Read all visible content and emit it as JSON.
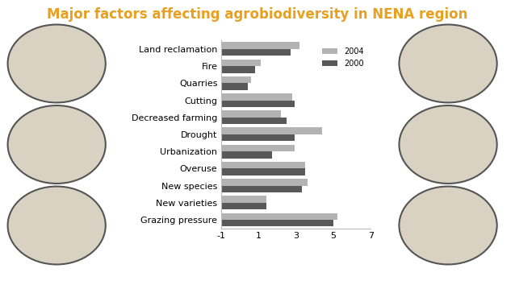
{
  "chart_data": {
    "type": "bar",
    "orientation": "horizontal",
    "title": "Major factors affecting agrobiodiversity in NENA region",
    "categories": [
      "Grazing pressure",
      "New varieties",
      "New species",
      "Overuse",
      "Urbanization",
      "Drought",
      "Decreased farming",
      "Cutting",
      "Quarries",
      "Fire",
      "Land reclamation"
    ],
    "series": [
      {
        "name": "2004",
        "color": "#b3b3b3",
        "values": [
          5.2,
          1.4,
          3.6,
          3.5,
          2.9,
          4.4,
          2.2,
          2.8,
          0.6,
          1.1,
          3.2
        ]
      },
      {
        "name": "2000",
        "color": "#595959",
        "values": [
          5.0,
          1.4,
          3.3,
          3.5,
          1.7,
          2.9,
          2.5,
          2.9,
          0.4,
          0.8,
          2.7
        ]
      }
    ],
    "xlim": [
      -1,
      7
    ],
    "xticks": [
      -1,
      1,
      3,
      5,
      7
    ],
    "grid": false,
    "legend": "upper right"
  }
}
